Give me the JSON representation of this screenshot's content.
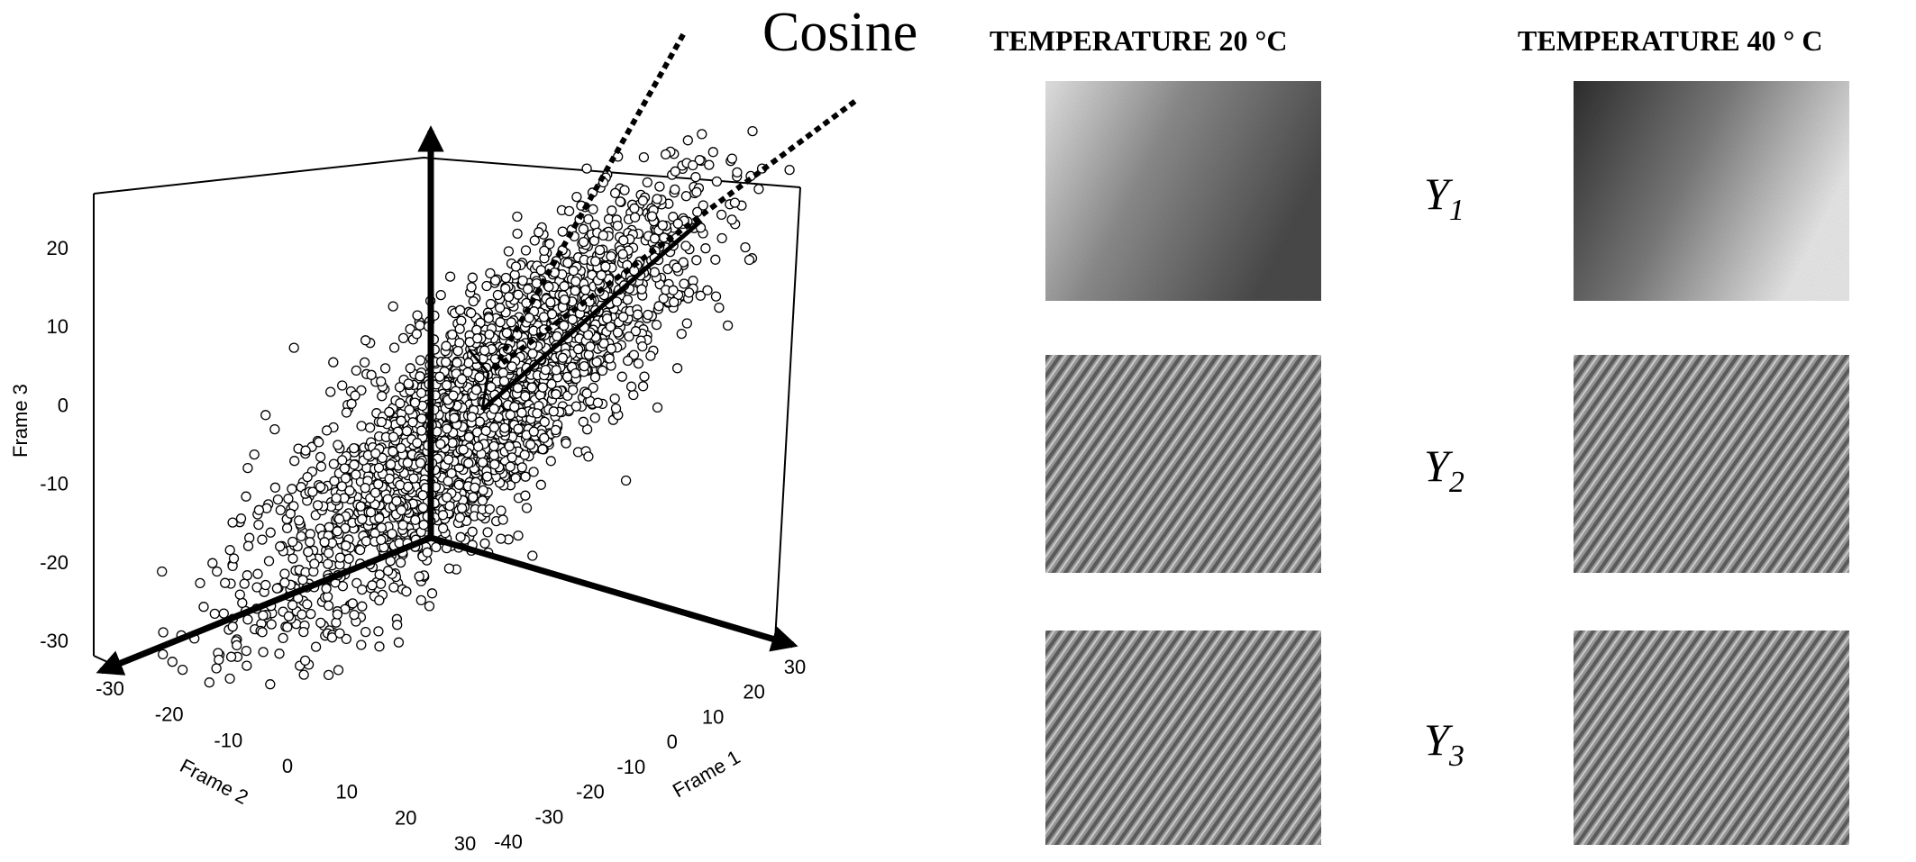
{
  "chart_data": [
    {
      "type": "scatter",
      "subtype": "3d-scatter",
      "title": "",
      "annotation": "Cosine",
      "axes": {
        "x": {
          "label": "Frame 1",
          "ticks": [
            "-40",
            "-30",
            "-20",
            "-10",
            "0",
            "10",
            "20",
            "30"
          ],
          "range": [
            -40,
            30
          ]
        },
        "y": {
          "label": "Frame 2",
          "ticks": [
            "-30",
            "-20",
            "-10",
            "0",
            "10",
            "20",
            "30"
          ],
          "range": [
            -30,
            30
          ]
        },
        "z": {
          "label": "Frame 3",
          "ticks": [
            "-30",
            "-20",
            "-10",
            "0",
            "10",
            "20"
          ],
          "range": [
            -30,
            25
          ]
        }
      },
      "grid": false,
      "marker": "open-circle",
      "point_cloud": {
        "description_count": 2500,
        "principal_direction": [
          1,
          -1,
          1.2
        ],
        "spread": [
          18,
          2.5,
          2.5
        ]
      },
      "arrows": [
        "principal-axis-solid",
        "principal-axis-dashed-1",
        "principal-axis-dashed-2"
      ],
      "colors": {
        "points_edge": "#000000",
        "points_fill": "#ffffff",
        "axes": "#000000"
      }
    },
    {
      "type": "heatmap",
      "subtype": "image-grid",
      "columns": [
        "TEMPERATURE 20 °C",
        "TEMPERATURE 40 ° C"
      ],
      "rows": [
        {
          "label": "Y",
          "sub": "1",
          "pattern": "smooth-gradient"
        },
        {
          "label": "Y",
          "sub": "2",
          "pattern": "diagonal-stripes"
        },
        {
          "label": "Y",
          "sub": "3",
          "pattern": "diagonal-stripes"
        }
      ],
      "cells": [
        [
          {
            "pattern": "gradient",
            "dark_side": "right",
            "light_side": "left"
          },
          {
            "pattern": "gradient",
            "dark_side": "left",
            "light_side": "right"
          }
        ],
        [
          {
            "pattern": "stripes",
            "angle": 35
          },
          {
            "pattern": "stripes",
            "angle": 35
          }
        ],
        [
          {
            "pattern": "stripes",
            "angle": 35
          },
          {
            "pattern": "stripes",
            "angle": 35
          }
        ]
      ],
      "colormap": "grayscale"
    }
  ]
}
